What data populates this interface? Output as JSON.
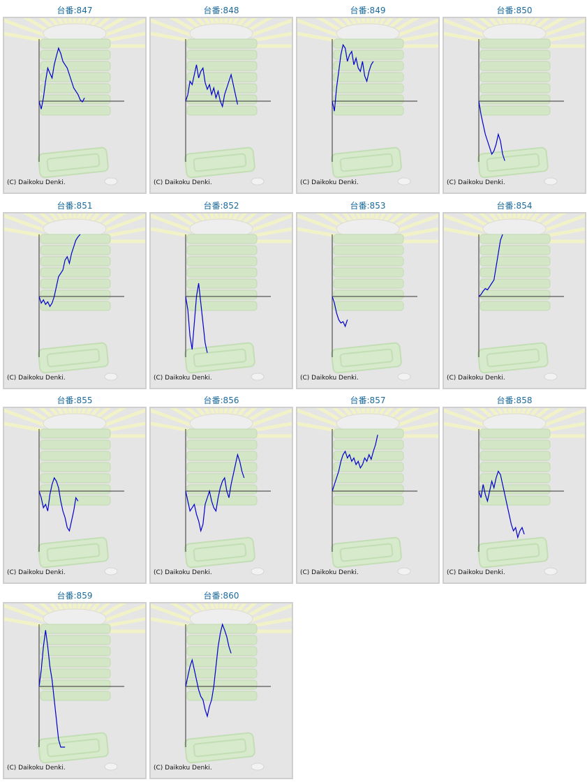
{
  "machines": [
    {
      "title": "台番:847",
      "copyright": "(C) Daikoku Denki.",
      "trend": [
        0,
        -12,
        5,
        30,
        50,
        42,
        35,
        55,
        68,
        80,
        72,
        60,
        55,
        50,
        40,
        30,
        20,
        15,
        10,
        2,
        -1,
        5
      ]
    },
    {
      "title": "台番:848",
      "copyright": "(C) Daikoku Denki.",
      "trend": [
        0,
        10,
        30,
        25,
        40,
        55,
        35,
        45,
        50,
        28,
        18,
        25,
        10,
        20,
        5,
        15,
        0,
        -8,
        10,
        20,
        30,
        40,
        25,
        10,
        -5
      ]
    },
    {
      "title": "台番:849",
      "copyright": "(C) Daikoku Denki.",
      "trend": [
        0,
        -15,
        20,
        45,
        70,
        85,
        80,
        60,
        70,
        75,
        55,
        65,
        50,
        45,
        60,
        38,
        30,
        45,
        55,
        60
      ]
    },
    {
      "title": "台番:850",
      "copyright": "(C) Daikoku Denki.",
      "trend": [
        0,
        -20,
        -35,
        -50,
        -60,
        -70,
        -80,
        -75,
        -65,
        -50,
        -60,
        -80,
        -90
      ]
    },
    {
      "title": "台番:851",
      "copyright": "(C) Daikoku Denki.",
      "trend": [
        0,
        -10,
        -5,
        -12,
        -8,
        -15,
        -10,
        0,
        15,
        30,
        35,
        40,
        55,
        60,
        50,
        65,
        75,
        85,
        90,
        95
      ]
    },
    {
      "title": "台番:852",
      "copyright": "(C) Daikoku Denki.",
      "trend": [
        0,
        -20,
        -60,
        -80,
        -40,
        0,
        20,
        -10,
        -40,
        -70,
        -85
      ]
    },
    {
      "title": "台番:853",
      "copyright": "(C) Daikoku Denki.",
      "trend": [
        0,
        -10,
        -25,
        -35,
        -40,
        -38,
        -45,
        -35
      ]
    },
    {
      "title": "台番:854",
      "copyright": "(C) Daikoku Denki.",
      "trend": [
        0,
        3,
        8,
        12,
        10,
        15,
        20,
        25,
        45,
        65,
        85,
        95
      ]
    },
    {
      "title": "台番:855",
      "copyright": "(C) Daikoku Denki.",
      "trend": [
        0,
        -10,
        -25,
        -20,
        -30,
        -5,
        10,
        20,
        15,
        5,
        -15,
        -30,
        -40,
        -55,
        -60,
        -45,
        -30,
        -10,
        -15
      ]
    },
    {
      "title": "台番:856",
      "copyright": "(C) Daikoku Denki.",
      "trend": [
        0,
        -15,
        -30,
        -25,
        -20,
        -35,
        -45,
        -60,
        -50,
        -20,
        -10,
        0,
        -15,
        -25,
        -30,
        -10,
        5,
        15,
        20,
        0,
        -10,
        10,
        25,
        40,
        55,
        45,
        30,
        20
      ]
    },
    {
      "title": "台番:857",
      "copyright": "(C) Daikoku Denki.",
      "trend": [
        0,
        10,
        20,
        30,
        45,
        55,
        60,
        50,
        55,
        45,
        50,
        40,
        45,
        35,
        40,
        50,
        45,
        55,
        48,
        60,
        70,
        85
      ]
    },
    {
      "title": "台番:858",
      "copyright": "(C) Daikoku Denki.",
      "trend": [
        0,
        -10,
        10,
        -5,
        -15,
        0,
        15,
        5,
        20,
        30,
        25,
        10,
        -5,
        -20,
        -35,
        -50,
        -60,
        -55,
        -70,
        -60,
        -55,
        -65
      ]
    },
    {
      "title": "台番:859",
      "copyright": "(C) Daikoku Denki.",
      "trend": [
        0,
        25,
        60,
        85,
        60,
        30,
        10,
        -20,
        -50,
        -80,
        -95,
        -110,
        -100
      ]
    },
    {
      "title": "台番:860",
      "copyright": "(C) Daikoku Denki.",
      "trend": [
        0,
        15,
        30,
        40,
        25,
        10,
        -5,
        -15,
        -20,
        -35,
        -45,
        -30,
        -20,
        0,
        30,
        60,
        80,
        95,
        85,
        75,
        60,
        50
      ]
    }
  ]
}
